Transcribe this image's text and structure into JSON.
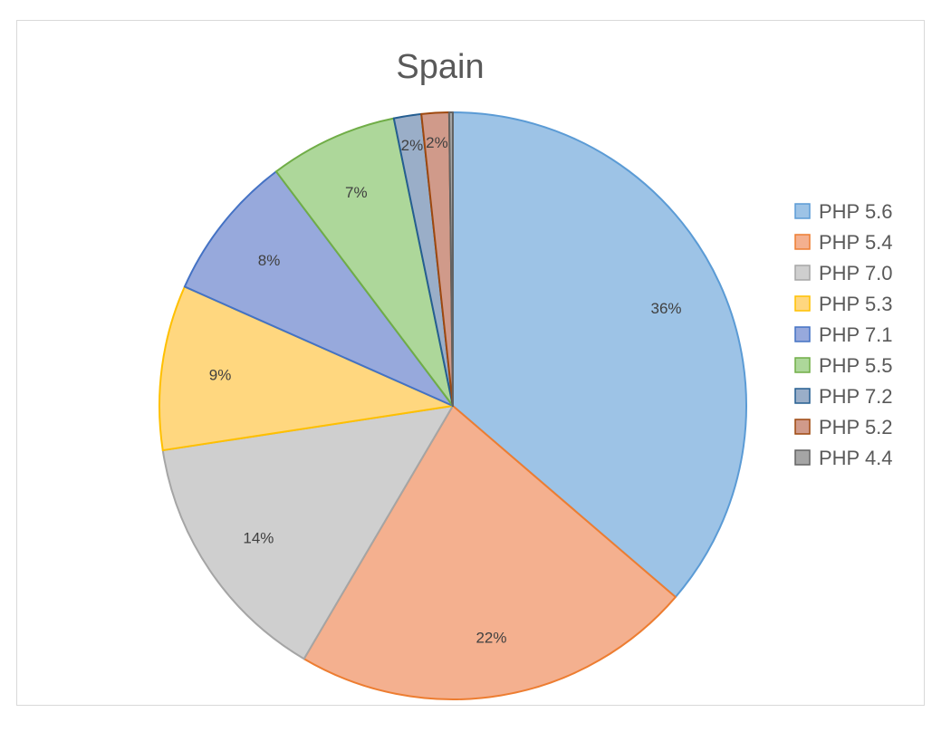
{
  "chart_data": {
    "type": "pie",
    "title": "Spain",
    "legend_position": "right",
    "slices": [
      {
        "label": "PHP 5.6",
        "value": 36,
        "display": "36%",
        "color": "#9dc3e6",
        "stroke": "#5b9bd5"
      },
      {
        "label": "PHP 5.4",
        "value": 22,
        "display": "22%",
        "color": "#f4b08f",
        "stroke": "#ed7d31"
      },
      {
        "label": "PHP 7.0",
        "value": 14,
        "display": "14%",
        "color": "#cfcfcf",
        "stroke": "#a5a5a5"
      },
      {
        "label": "PHP 5.3",
        "value": 9,
        "display": "9%",
        "color": "#ffd77f",
        "stroke": "#ffc000"
      },
      {
        "label": "PHP 7.1",
        "value": 8,
        "display": "8%",
        "color": "#97a9dc",
        "stroke": "#4472c4"
      },
      {
        "label": "PHP 5.5",
        "value": 7,
        "display": "7%",
        "color": "#add79a",
        "stroke": "#70ad47"
      },
      {
        "label": "PHP 7.2",
        "value": 1.5,
        "display": "2%",
        "color": "#9aaec8",
        "stroke": "#255e91"
      },
      {
        "label": "PHP 5.2",
        "value": 1.5,
        "display": "2%",
        "color": "#d09a8a",
        "stroke": "#9e480e"
      },
      {
        "label": "PHP 4.4",
        "value": 0.2,
        "display": "",
        "color": "#a5a5a5",
        "stroke": "#636363"
      }
    ]
  }
}
